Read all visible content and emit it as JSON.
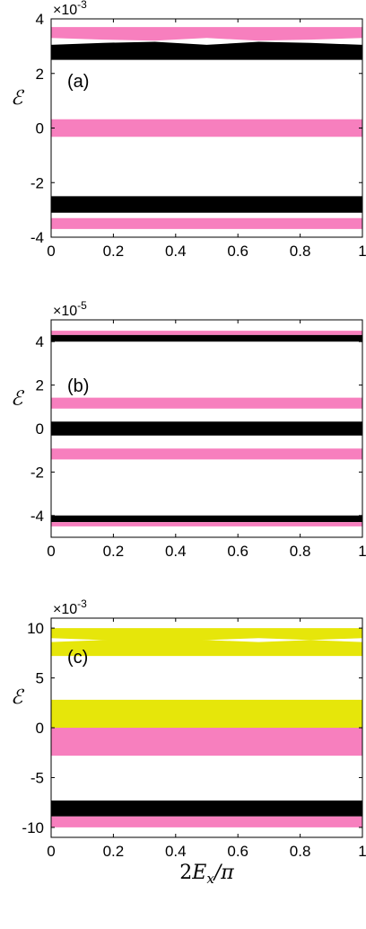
{
  "chart_data": [
    {
      "type": "band",
      "panel_label": "(a)",
      "ylabel": "ℰ",
      "xlabel": "",
      "multiplier": {
        "base": "×10",
        "exponent": "-3"
      },
      "xlim": [
        0,
        1
      ],
      "ylim": [
        -4,
        4
      ],
      "xticks": [
        0,
        0.2,
        0.4,
        0.6,
        0.8,
        1
      ],
      "xtick_labels": [
        "0",
        "0.2",
        "0.4",
        "0.6",
        "0.8",
        "1"
      ],
      "yticks": [
        4,
        2,
        0,
        -2,
        -4
      ],
      "ytick_labels": [
        "4",
        "2",
        "0",
        "-2",
        "-4"
      ],
      "bands": [
        {
          "color": "#f77fbe",
          "lower": [
            3.3,
            3.24,
            3.2,
            3.3,
            3.2,
            3.24,
            3.3
          ],
          "upper": [
            3.7,
            3.7,
            3.7,
            3.7,
            3.7,
            3.7,
            3.7
          ]
        },
        {
          "color": "#000000",
          "lower": [
            2.5,
            2.5,
            2.5,
            2.5,
            2.5,
            2.5,
            2.5
          ],
          "upper": [
            3.05,
            3.12,
            3.16,
            3.05,
            3.16,
            3.12,
            3.05
          ]
        },
        {
          "color": "#f77fbe",
          "lower": [
            -0.32,
            -0.32,
            -0.32,
            -0.32,
            -0.32,
            -0.32,
            -0.32
          ],
          "upper": [
            0.32,
            0.32,
            0.32,
            0.32,
            0.32,
            0.32,
            0.32
          ]
        },
        {
          "color": "#000000",
          "lower": [
            -3.1,
            -3.1,
            -3.1,
            -3.1,
            -3.1,
            -3.1,
            -3.1
          ],
          "upper": [
            -2.5,
            -2.5,
            -2.5,
            -2.5,
            -2.5,
            -2.5,
            -2.5
          ]
        },
        {
          "color": "#f77fbe",
          "lower": [
            -3.7,
            -3.7,
            -3.7,
            -3.7,
            -3.7,
            -3.7,
            -3.7
          ],
          "upper": [
            -3.3,
            -3.3,
            -3.3,
            -3.3,
            -3.3,
            -3.3,
            -3.3
          ]
        }
      ]
    },
    {
      "type": "band",
      "panel_label": "(b)",
      "ylabel": "ℰ",
      "xlabel": "",
      "multiplier": {
        "base": "×10",
        "exponent": "-5"
      },
      "xlim": [
        0,
        1
      ],
      "ylim": [
        -5,
        5
      ],
      "xticks": [
        0,
        0.2,
        0.4,
        0.6,
        0.8,
        1
      ],
      "xtick_labels": [
        "0",
        "0.2",
        "0.4",
        "0.6",
        "0.8",
        "1"
      ],
      "yticks": [
        4,
        2,
        0,
        -2,
        -4
      ],
      "ytick_labels": [
        "4",
        "2",
        "0",
        "-2",
        "-4"
      ],
      "bands": [
        {
          "color": "#f77fbe",
          "lower": [
            4.3,
            4.3,
            4.3,
            4.3,
            4.3,
            4.3,
            4.3
          ],
          "upper": [
            4.5,
            4.5,
            4.5,
            4.5,
            4.5,
            4.5,
            4.5
          ]
        },
        {
          "color": "#000000",
          "lower": [
            4.0,
            4.0,
            4.0,
            4.0,
            4.0,
            4.0,
            4.0
          ],
          "upper": [
            4.3,
            4.3,
            4.3,
            4.3,
            4.3,
            4.3,
            4.3
          ]
        },
        {
          "color": "#f77fbe",
          "lower": [
            0.92,
            0.92,
            0.92,
            0.92,
            0.92,
            0.92,
            0.92
          ],
          "upper": [
            1.42,
            1.42,
            1.42,
            1.42,
            1.42,
            1.42,
            1.42
          ]
        },
        {
          "color": "#000000",
          "lower": [
            -0.32,
            -0.32,
            -0.32,
            -0.32,
            -0.32,
            -0.32,
            -0.32
          ],
          "upper": [
            0.32,
            0.32,
            0.32,
            0.32,
            0.32,
            0.32,
            0.32
          ]
        },
        {
          "color": "#f77fbe",
          "lower": [
            -1.42,
            -1.42,
            -1.42,
            -1.42,
            -1.42,
            -1.42,
            -1.42
          ],
          "upper": [
            -0.92,
            -0.92,
            -0.92,
            -0.92,
            -0.92,
            -0.92,
            -0.92
          ]
        },
        {
          "color": "#000000",
          "lower": [
            -4.3,
            -4.3,
            -4.3,
            -4.3,
            -4.3,
            -4.3,
            -4.3
          ],
          "upper": [
            -4.0,
            -4.0,
            -4.0,
            -4.0,
            -4.0,
            -4.0,
            -4.0
          ]
        },
        {
          "color": "#f77fbe",
          "lower": [
            -4.5,
            -4.5,
            -4.5,
            -4.5,
            -4.5,
            -4.5,
            -4.5
          ],
          "upper": [
            -4.3,
            -4.3,
            -4.3,
            -4.3,
            -4.3,
            -4.3,
            -4.3
          ]
        }
      ]
    },
    {
      "type": "band",
      "panel_label": "(c)",
      "ylabel": "ℰ",
      "xlabel": "2E_x/π",
      "multiplier": {
        "base": "×10",
        "exponent": "-3"
      },
      "xlim": [
        0,
        1
      ],
      "ylim": [
        -11,
        11
      ],
      "xticks": [
        0,
        0.2,
        0.4,
        0.6,
        0.8,
        1
      ],
      "xtick_labels": [
        "0",
        "0.2",
        "0.4",
        "0.6",
        "0.8",
        "1"
      ],
      "yticks": [
        10,
        5,
        0,
        -5,
        -10
      ],
      "ytick_labels": [
        "10",
        "5",
        "0",
        "-5",
        "-10"
      ],
      "bands": [
        {
          "color": "#e6e60a",
          "lower": [
            9.0,
            8.8,
            8.7,
            8.8,
            9.0,
            8.8,
            9.0
          ],
          "upper": [
            10.0,
            10.0,
            10.0,
            10.0,
            10.0,
            10.0,
            10.0
          ]
        },
        {
          "color": "#e6e60a",
          "lower": [
            7.2,
            7.2,
            7.2,
            7.2,
            7.2,
            7.2,
            7.2
          ],
          "upper": [
            8.6,
            8.8,
            8.9,
            8.8,
            8.6,
            8.8,
            8.6
          ]
        },
        {
          "color": "#e6e60a",
          "lower": [
            0.0,
            0.0,
            0.0,
            0.0,
            0.0,
            0.0,
            0.0
          ],
          "upper": [
            2.8,
            2.8,
            2.8,
            2.8,
            2.8,
            2.8,
            2.8
          ]
        },
        {
          "color": "#f77fbe",
          "lower": [
            -2.8,
            -2.8,
            -2.8,
            -2.8,
            -2.8,
            -2.8,
            -2.8
          ],
          "upper": [
            0.0,
            0.0,
            0.0,
            0.0,
            0.0,
            0.0,
            0.0
          ]
        },
        {
          "color": "#000000",
          "lower": [
            -8.9,
            -8.9,
            -8.9,
            -8.9,
            -8.9,
            -8.9,
            -8.9
          ],
          "upper": [
            -7.3,
            -7.3,
            -7.3,
            -7.3,
            -7.3,
            -7.3,
            -7.3
          ]
        },
        {
          "color": "#f77fbe",
          "lower": [
            -10.0,
            -10.0,
            -10.0,
            -10.0,
            -10.0,
            -10.0,
            -10.0
          ],
          "upper": [
            -8.9,
            -8.9,
            -8.9,
            -8.9,
            -8.9,
            -8.9,
            -8.9
          ]
        }
      ]
    }
  ]
}
